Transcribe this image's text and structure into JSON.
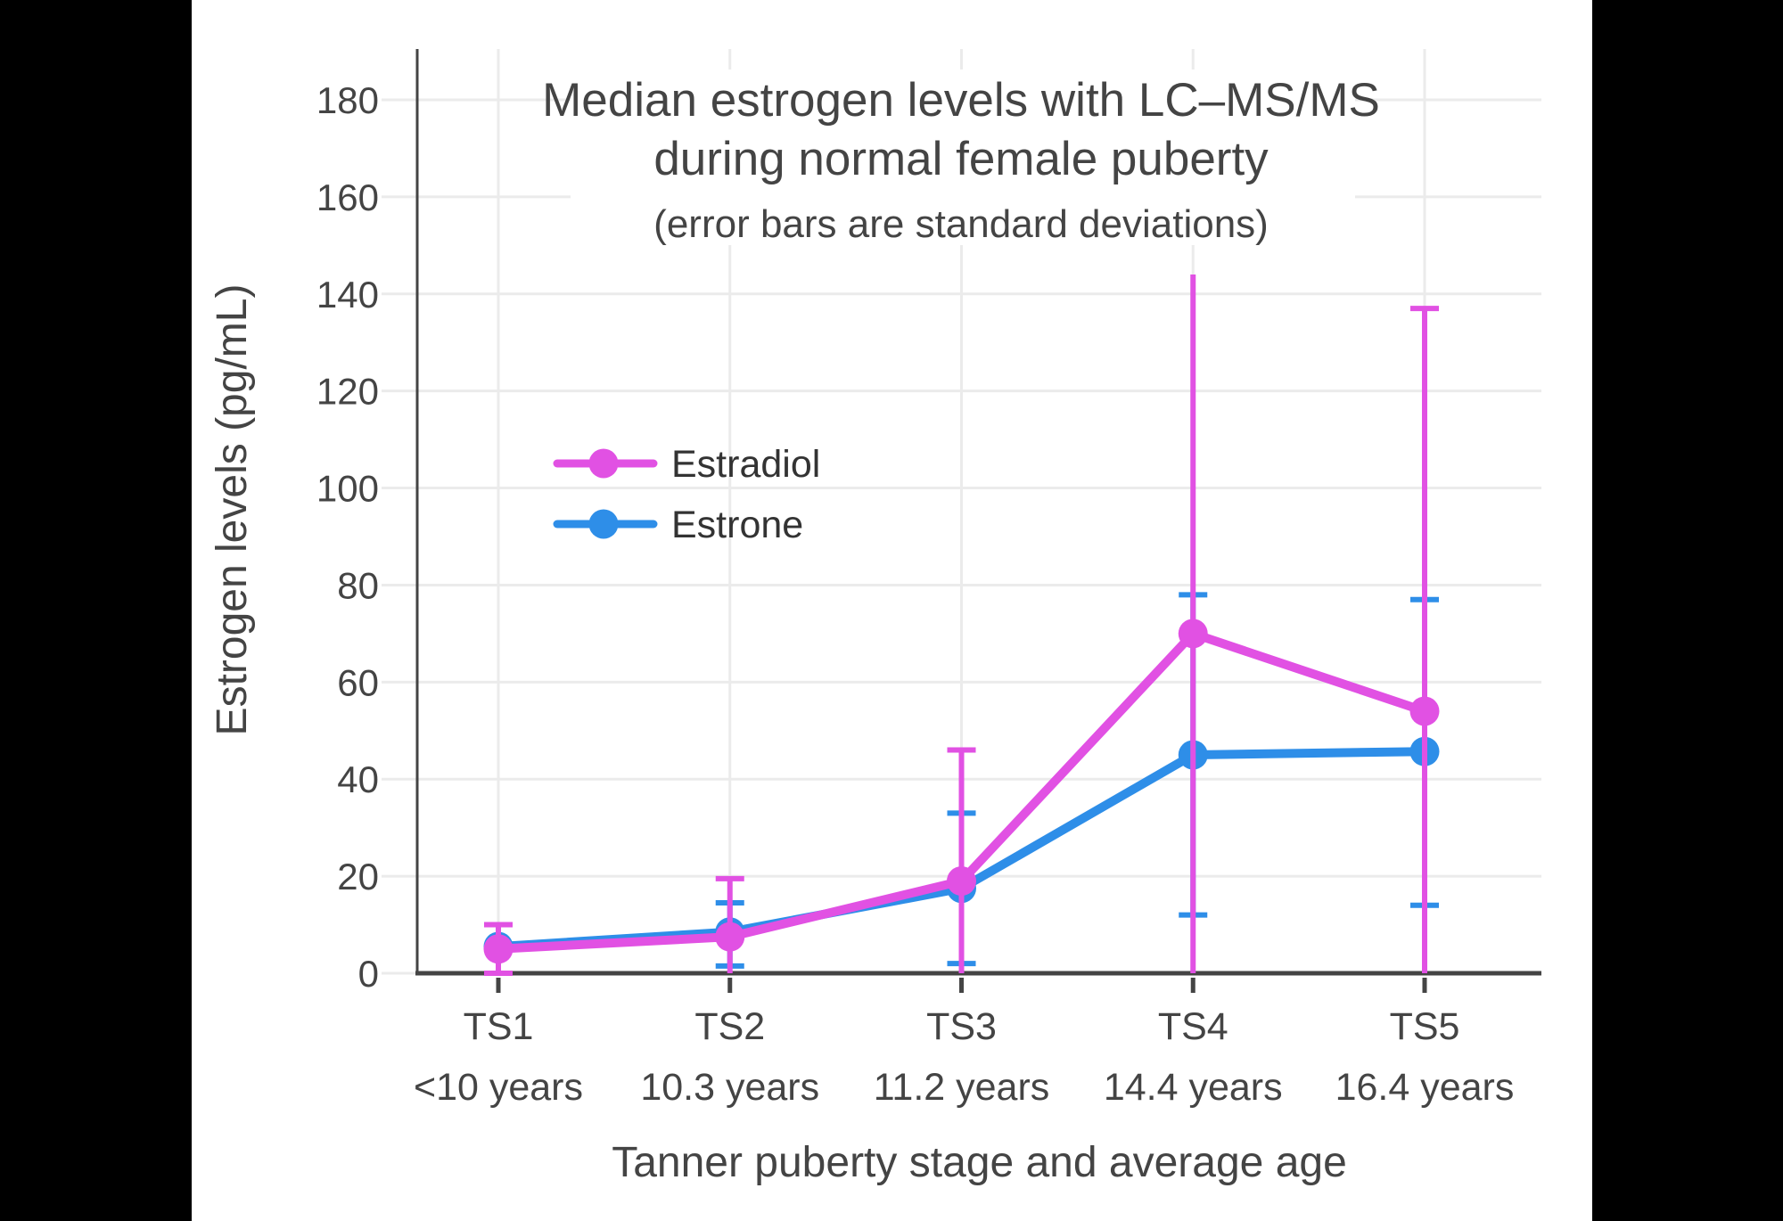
{
  "page": {
    "background": "#000000",
    "panel_background": "#FFFFFF"
  },
  "chart_data": {
    "type": "line",
    "title_line1": "Median estrogen levels with LC–MS/MS",
    "title_line2": "during normal female puberty",
    "subtitle": "(error bars are standard deviations)",
    "xlabel": "Tanner puberty stage and average age",
    "ylabel": "Estrogen levels (pg/mL)",
    "ylim": [
      0,
      190
    ],
    "yticks": [
      0,
      20,
      40,
      60,
      80,
      100,
      120,
      140,
      160,
      180
    ],
    "ytick_labels": [
      "0",
      "20",
      "40",
      "60",
      "80",
      "100",
      "120",
      "140",
      "160",
      "180"
    ],
    "grid": true,
    "legend_position": "inside-upper-left",
    "categories": [
      {
        "stage": "TS1",
        "age": "<10 years"
      },
      {
        "stage": "TS2",
        "age": "10.3 years"
      },
      {
        "stage": "TS3",
        "age": "11.2 years"
      },
      {
        "stage": "TS4",
        "age": "14.4 years"
      },
      {
        "stage": "TS5",
        "age": "16.4 years"
      }
    ],
    "colors": {
      "grid": "#EBEBEB",
      "axis": "#444444",
      "text": "#444444",
      "legend_text": "#333333"
    },
    "series": [
      {
        "name": "Estradiol",
        "color": "#E151E3",
        "values": [
          5,
          7.5,
          19,
          70,
          54
        ],
        "error_bars": [
          {
            "low": 0,
            "high": 10,
            "cap_low": true,
            "cap_high": true
          },
          {
            "low": 0,
            "high": 19.5,
            "cap_low": false,
            "cap_high": true
          },
          {
            "low": 0,
            "high": 46,
            "cap_low": false,
            "cap_high": true
          },
          {
            "low": 0,
            "high": 144,
            "cap_low": false,
            "cap_high": false
          },
          {
            "low": 0,
            "high": 137,
            "cap_low": false,
            "cap_high": true
          }
        ]
      },
      {
        "name": "Estrone",
        "color": "#2E8EE8",
        "values": [
          5.5,
          8.5,
          17.5,
          45,
          45.7
        ],
        "error_bars": [
          null,
          {
            "low": 1.5,
            "high": 14.5,
            "cap_low": true,
            "cap_high": true
          },
          {
            "low": 2,
            "high": 33,
            "cap_low": true,
            "cap_high": true
          },
          {
            "low": 12,
            "high": 78,
            "cap_low": true,
            "cap_high": true
          },
          {
            "low": 14,
            "high": 77,
            "cap_low": true,
            "cap_high": true
          }
        ]
      }
    ]
  }
}
